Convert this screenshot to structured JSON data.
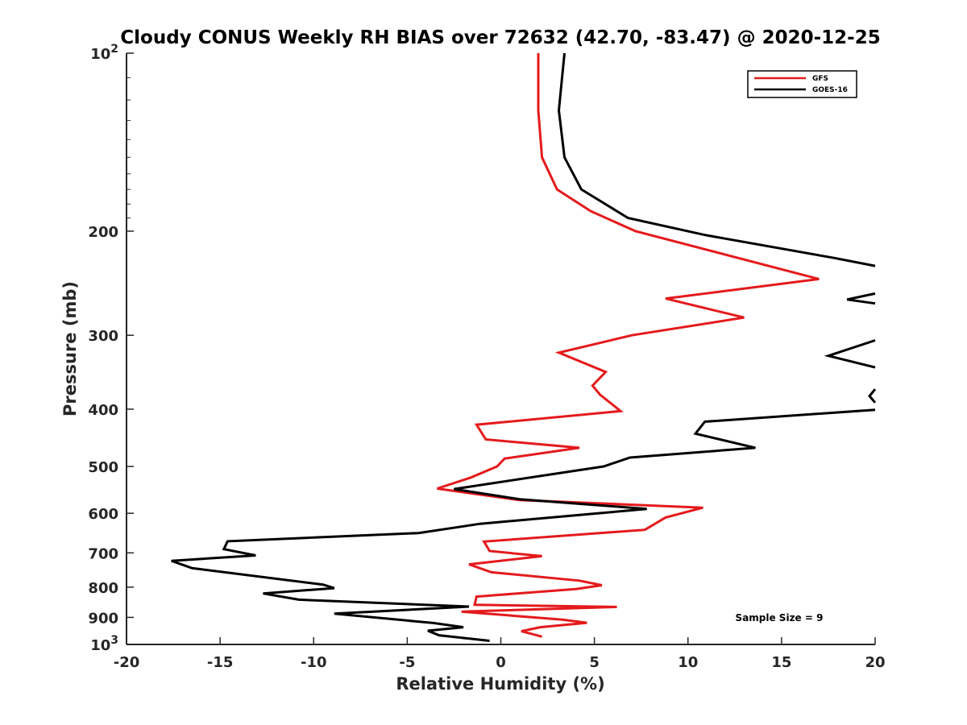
{
  "chart_data": {
    "type": "line",
    "title": "Cloudy CONUS Weekly RH BIAS over 72632 (42.70, -83.47) @ 2020-12-25",
    "xlabel": "Relative Humidity (%)",
    "ylabel": "Pressure (mb)",
    "xlim": [
      -20,
      20
    ],
    "ylim": [
      100,
      1000
    ],
    "y_scale": "log",
    "y_reversed": true,
    "grid": false,
    "legend_position": "top-right",
    "annotation": "Sample Size = 9",
    "x_ticks": [
      {
        "value": -20,
        "label": "-20"
      },
      {
        "value": -15,
        "label": "-15"
      },
      {
        "value": -10,
        "label": "-10"
      },
      {
        "value": -5,
        "label": "-5"
      },
      {
        "value": 0,
        "label": "0"
      },
      {
        "value": 5,
        "label": "5"
      },
      {
        "value": 10,
        "label": "10"
      },
      {
        "value": 15,
        "label": "15"
      },
      {
        "value": 20,
        "label": "20"
      }
    ],
    "y_ticks": [
      {
        "value": 100,
        "base": "10",
        "exp": "2"
      },
      {
        "value": 200,
        "label": "200"
      },
      {
        "value": 300,
        "label": "300"
      },
      {
        "value": 400,
        "label": "400"
      },
      {
        "value": 500,
        "label": "500"
      },
      {
        "value": 600,
        "label": "600"
      },
      {
        "value": 700,
        "label": "700"
      },
      {
        "value": 800,
        "label": "800"
      },
      {
        "value": 900,
        "label": "900"
      },
      {
        "value": 1000,
        "base": "10",
        "exp": "3"
      }
    ],
    "series": [
      {
        "name": "GFS",
        "color": "#e41a1c",
        "points": [
          [
            2.0,
            100
          ],
          [
            2.0,
            125
          ],
          [
            2.2,
            150
          ],
          [
            3.0,
            170
          ],
          [
            4.8,
            185
          ],
          [
            7.2,
            200
          ],
          [
            17.0,
            241
          ],
          [
            8.8,
            260
          ],
          [
            13.0,
            280
          ],
          [
            7.0,
            300
          ],
          [
            3.1,
            321
          ],
          [
            5.6,
            346
          ],
          [
            4.9,
            365
          ],
          [
            5.3,
            378
          ],
          [
            6.4,
            403
          ],
          [
            -1.3,
            425
          ],
          [
            -0.8,
            450
          ],
          [
            4.2,
            465
          ],
          [
            0.2,
            485
          ],
          [
            -0.2,
            500
          ],
          [
            -1.6,
            522
          ],
          [
            -3.4,
            545
          ],
          [
            1.0,
            570
          ],
          [
            10.8,
            587
          ],
          [
            8.8,
            610
          ],
          [
            7.7,
            640
          ],
          [
            -0.9,
            670
          ],
          [
            -0.6,
            695
          ],
          [
            2.2,
            709
          ],
          [
            -1.7,
            732
          ],
          [
            -0.5,
            755
          ],
          [
            4.2,
            780
          ],
          [
            5.4,
            794
          ],
          [
            4.0,
            806
          ],
          [
            -1.3,
            830
          ],
          [
            -1.4,
            857
          ],
          [
            6.2,
            864
          ],
          [
            -2.1,
            880
          ],
          [
            3.3,
            908
          ],
          [
            4.6,
            919
          ],
          [
            2.1,
            935
          ],
          [
            1.1,
            950
          ],
          [
            2.2,
            970
          ]
        ]
      },
      {
        "name": "GOES-16",
        "color": "#000000",
        "points": [
          [
            3.4,
            100
          ],
          [
            3.1,
            125
          ],
          [
            3.4,
            150
          ],
          [
            4.3,
            170
          ],
          [
            6.8,
            190
          ],
          [
            10.9,
            203
          ],
          [
            17.8,
            222
          ],
          [
            20.0,
            229
          ],
          null,
          [
            20.0,
            255
          ],
          [
            18.5,
            261
          ],
          [
            20.0,
            265
          ],
          null,
          [
            20.0,
            306
          ],
          [
            17.5,
            325
          ],
          [
            20.0,
            340
          ],
          null,
          [
            20.0,
            370
          ],
          [
            19.7,
            380
          ],
          [
            20.0,
            390
          ],
          null,
          [
            20.0,
            401
          ],
          [
            10.9,
            420
          ],
          [
            10.4,
            440
          ],
          [
            13.6,
            465
          ],
          [
            6.9,
            483
          ],
          [
            5.5,
            500
          ],
          [
            -2.5,
            546
          ],
          [
            1.0,
            568
          ],
          [
            7.8,
            590
          ],
          [
            -1.1,
            625
          ],
          [
            -4.4,
            648
          ],
          [
            -14.6,
            669
          ],
          [
            -14.8,
            690
          ],
          [
            -13.1,
            707
          ],
          [
            -17.6,
            722
          ],
          [
            -16.5,
            743
          ],
          [
            -9.5,
            792
          ],
          [
            -8.9,
            803
          ],
          [
            -12.7,
            820
          ],
          [
            -10.8,
            840
          ],
          [
            -1.7,
            863
          ],
          [
            -8.9,
            887
          ],
          [
            -3.6,
            920
          ],
          [
            -2.0,
            935
          ],
          [
            -3.9,
            948
          ],
          [
            -3.3,
            965
          ],
          [
            -0.6,
            986
          ]
        ]
      }
    ]
  }
}
